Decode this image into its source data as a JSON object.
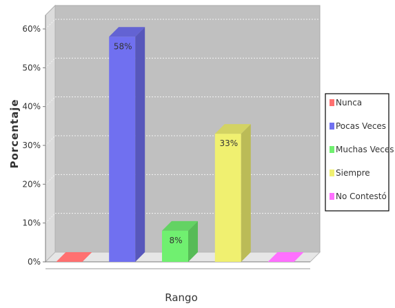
{
  "chart_data": {
    "type": "bar",
    "xlabel": "Rango",
    "ylabel": "Porcentaje",
    "ylim": [
      0,
      0.65
    ],
    "yticks": [
      "0%",
      "10%",
      "20%",
      "30%",
      "40%",
      "50%",
      "60%"
    ],
    "grid": true,
    "legend_position": "right",
    "categories": [
      "Nunca",
      "Pocas Veces",
      "Muchas Veces",
      "Siempre",
      "No Contestó"
    ],
    "values": [
      0,
      0.58,
      0.08,
      0.33,
      0
    ],
    "data_labels": [
      "",
      "58%",
      "8%",
      "33%",
      ""
    ],
    "colors": [
      "#ff7070",
      "#7070f0",
      "#70f070",
      "#f0f070",
      "#ff70ff"
    ]
  }
}
